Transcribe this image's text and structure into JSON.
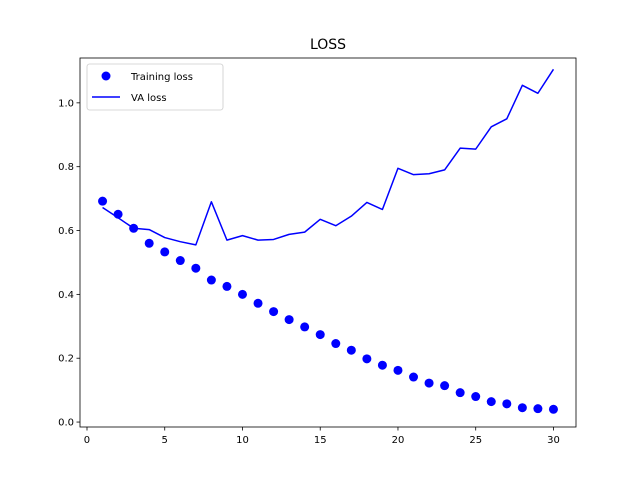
{
  "chart_data": {
    "type": "line",
    "title": "LOSS",
    "xlabel": "",
    "ylabel": "",
    "xlim": [
      -0.45,
      31.45
    ],
    "ylim": [
      -0.0155,
      1.1405
    ],
    "xticks": [
      0,
      5,
      10,
      15,
      20,
      25,
      30
    ],
    "yticks": [
      0.0,
      0.2,
      0.4,
      0.6,
      0.8,
      1.0
    ],
    "ytick_labels": [
      "0.0",
      "0.2",
      "0.4",
      "0.6",
      "0.8",
      "1.0"
    ],
    "legend_position": "upper-left",
    "grid": false,
    "x": [
      1,
      2,
      3,
      4,
      5,
      6,
      7,
      8,
      9,
      10,
      11,
      12,
      13,
      14,
      15,
      16,
      17,
      18,
      19,
      20,
      21,
      22,
      23,
      24,
      25,
      26,
      27,
      28,
      29,
      30
    ],
    "series": [
      {
        "name": "Training loss",
        "style": "markers",
        "color": "#0000ff",
        "values": [
          0.692,
          0.651,
          0.607,
          0.56,
          0.533,
          0.506,
          0.482,
          0.445,
          0.425,
          0.4,
          0.372,
          0.346,
          0.321,
          0.298,
          0.274,
          0.246,
          0.225,
          0.198,
          0.178,
          0.162,
          0.141,
          0.122,
          0.114,
          0.092,
          0.08,
          0.064,
          0.057,
          0.045,
          0.042,
          0.04
        ]
      },
      {
        "name": "VA loss",
        "style": "line",
        "color": "#0000ff",
        "values": [
          0.672,
          0.64,
          0.607,
          0.603,
          0.578,
          0.565,
          0.555,
          0.69,
          0.57,
          0.584,
          0.57,
          0.572,
          0.588,
          0.595,
          0.635,
          0.615,
          0.645,
          0.688,
          0.666,
          0.795,
          0.775,
          0.778,
          0.79,
          0.858,
          0.855,
          0.925,
          0.95,
          1.055,
          1.03,
          1.105
        ]
      }
    ]
  }
}
